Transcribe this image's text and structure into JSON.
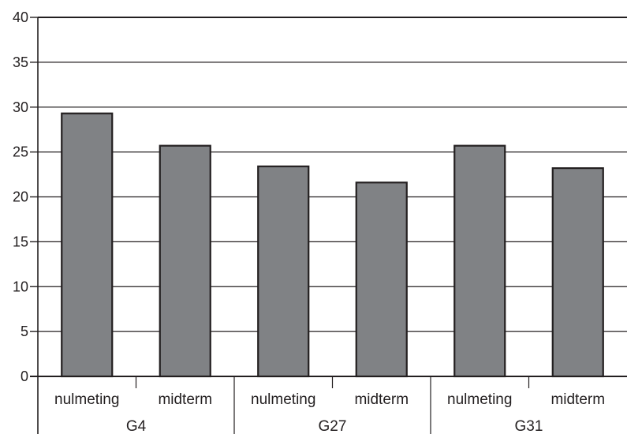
{
  "chart_data": {
    "type": "bar",
    "title": "",
    "xlabel": "",
    "ylabel": "",
    "ylim": [
      0,
      40
    ],
    "yticks": [
      0,
      5,
      10,
      15,
      20,
      25,
      30,
      35,
      40
    ],
    "grid": true,
    "legend": "none",
    "bar_color": "#808285",
    "groups": [
      {
        "label": "G4",
        "categories": [
          "nulmeting",
          "midterm"
        ],
        "values": [
          29.3,
          25.7
        ]
      },
      {
        "label": "G27",
        "categories": [
          "nulmeting",
          "midterm"
        ],
        "values": [
          23.4,
          21.6
        ]
      },
      {
        "label": "G31",
        "categories": [
          "nulmeting",
          "midterm"
        ],
        "values": [
          25.7,
          23.2
        ]
      }
    ]
  }
}
